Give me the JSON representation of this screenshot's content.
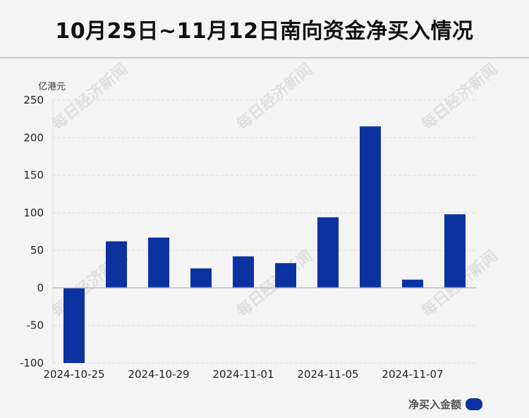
{
  "page": {
    "title": "10月25日~11月12日南向资金净买入情况",
    "watermark": "每日经济新闻"
  },
  "chart_data": {
    "type": "bar",
    "title": "10月25日~11月12日南向资金净买入情况",
    "ylabel": "亿港元",
    "xlabel": "",
    "ylim": [
      -100,
      250
    ],
    "yticks": [
      250,
      200,
      150,
      100,
      50,
      0,
      -50,
      -100
    ],
    "grid": true,
    "legend_position": "bottom-right",
    "x_tick_labels": [
      "2024-10-25",
      "2024-10-29",
      "2024-11-01",
      "2024-11-05",
      "2024-11-07"
    ],
    "bar_count": 10,
    "series": [
      {
        "name": "净买入金额",
        "color": "#0c32a0",
        "values": [
          -100,
          62,
          67,
          26,
          42,
          33,
          94,
          215,
          11,
          98
        ]
      }
    ]
  }
}
